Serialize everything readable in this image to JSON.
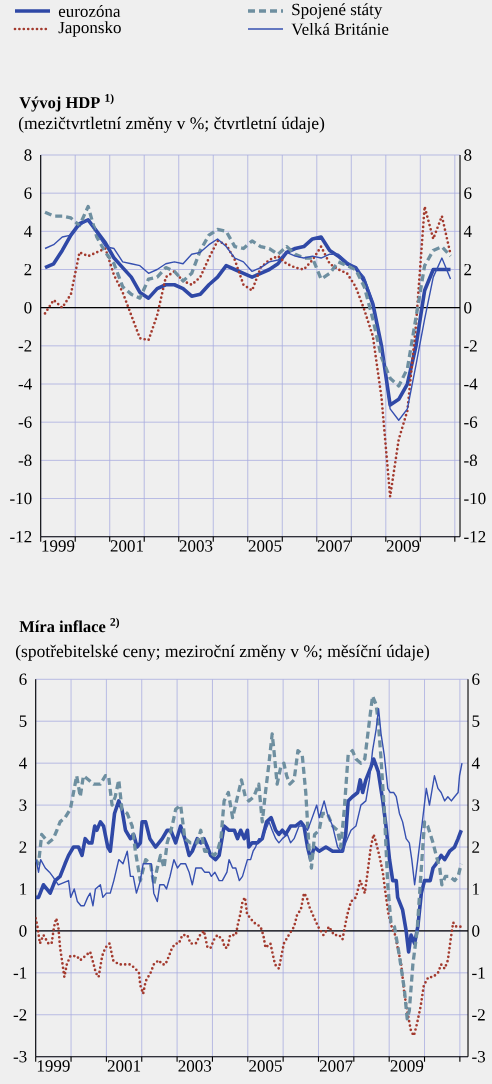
{
  "chart_data": [
    {
      "type": "line",
      "title": "Vývoj HDP $^{1)}$",
      "subtitle": "(mezičtvrtletní změny v %; čtvrtletní údaje)",
      "legend": "top",
      "grid": true,
      "xlim": [
        1999,
        2011.15
      ],
      "ylim": [
        -12,
        8
      ],
      "y2lim": [
        -12,
        8
      ],
      "xticks": [
        {
          "value": 1999,
          "label": null
        },
        {
          "value": 2000,
          "label": null
        },
        {
          "value": 2001,
          "label": null
        },
        {
          "value": 2002,
          "label": null
        },
        {
          "value": 2003,
          "label": null
        },
        {
          "value": 2004,
          "label": null
        },
        {
          "value": 2005,
          "label": null
        },
        {
          "value": 2006,
          "label": null
        },
        {
          "value": 2007,
          "label": null
        },
        {
          "value": 2008,
          "label": null
        },
        {
          "value": 2009,
          "label": null
        },
        {
          "value": 2010,
          "label": null
        },
        {
          "value": 2011,
          "label": null
        },
        {
          "value": 1999.5,
          "label": "1999"
        },
        {
          "value": 2001.5,
          "label": "2001"
        },
        {
          "value": 2003.5,
          "label": "2003"
        },
        {
          "value": 2005.5,
          "label": "2005"
        },
        {
          "value": 2007.5,
          "label": "2007"
        },
        {
          "value": 2009.5,
          "label": "2009"
        }
      ],
      "yticks": [
        -12,
        -10,
        -8,
        -6,
        -4,
        -2,
        0,
        2,
        4,
        6,
        8
      ],
      "y2ticks": [
        -12,
        -10,
        -8,
        -6,
        -4,
        -2,
        0,
        2,
        4,
        6,
        8
      ],
      "ref_lines": [
        {
          "axis": "y",
          "value": 0,
          "color": "#000000"
        }
      ],
      "x": [
        1999.125,
        1999.375,
        1999.625,
        1999.875,
        2000.125,
        2000.375,
        2000.625,
        2000.875,
        2001.125,
        2001.375,
        2001.625,
        2001.875,
        2002.125,
        2002.375,
        2002.625,
        2002.875,
        2003.125,
        2003.375,
        2003.625,
        2003.875,
        2004.125,
        2004.375,
        2004.625,
        2004.875,
        2005.125,
        2005.375,
        2005.625,
        2005.875,
        2006.125,
        2006.375,
        2006.625,
        2006.875,
        2007.125,
        2007.375,
        2007.625,
        2007.875,
        2008.125,
        2008.375,
        2008.625,
        2008.875,
        2009.125,
        2009.375,
        2009.625,
        2009.875,
        2010.125,
        2010.375,
        2010.625,
        2010.875
      ],
      "series": [
        {
          "name": "eurozóna",
          "color": "#2f48a6",
          "line_style": "solid",
          "values": [
            2.1,
            2.3,
            3.0,
            3.8,
            4.4,
            4.6,
            4.0,
            3.4,
            2.6,
            2.1,
            1.6,
            0.8,
            0.5,
            1.0,
            1.2,
            1.2,
            1.0,
            0.6,
            0.7,
            1.2,
            1.6,
            2.2,
            2.0,
            1.8,
            1.6,
            1.8,
            2.0,
            2.3,
            2.9,
            3.1,
            3.2,
            3.6,
            3.7,
            3.0,
            2.7,
            2.3,
            2.1,
            1.4,
            0.2,
            -2.0,
            -5.1,
            -4.8,
            -4.0,
            -2.0,
            0.9,
            2.0,
            2.0,
            2.0
          ]
        },
        {
          "name": "Japonsko",
          "color": "#a33a2e",
          "line_style": "dotted",
          "values": [
            -0.3,
            0.4,
            0.0,
            0.7,
            2.9,
            2.7,
            2.9,
            3.1,
            1.7,
            0.8,
            -0.4,
            -1.6,
            -1.7,
            -0.4,
            1.6,
            1.9,
            1.4,
            1.2,
            1.6,
            2.6,
            3.5,
            3.3,
            2.5,
            1.2,
            0.9,
            2.1,
            2.5,
            2.7,
            2.3,
            2.1,
            2.0,
            2.5,
            3.2,
            2.3,
            2.0,
            1.8,
            1.1,
            -0.1,
            -1.5,
            -4.7,
            -9.9,
            -6.9,
            -5.4,
            -0.9,
            5.3,
            3.6,
            4.8,
            2.8
          ]
        },
        {
          "name": "Spojené státy",
          "color": "#6e8fa0",
          "line_style": "dashed",
          "values": [
            5.0,
            4.8,
            4.8,
            4.7,
            4.3,
            5.3,
            3.7,
            2.9,
            2.3,
            1.1,
            0.7,
            0.5,
            1.5,
            1.6,
            2.1,
            1.9,
            1.4,
            1.8,
            3.0,
            3.8,
            4.1,
            4.0,
            3.2,
            3.1,
            3.5,
            3.2,
            3.1,
            2.8,
            3.2,
            2.8,
            2.6,
            2.6,
            1.5,
            1.8,
            2.4,
            2.2,
            2.0,
            1.1,
            -0.6,
            -2.6,
            -3.7,
            -4.1,
            -3.2,
            -0.5,
            2.2,
            3.0,
            3.2,
            2.7
          ]
        },
        {
          "name": "Velká Británie",
          "color": "#3650b0",
          "line_style": "solid",
          "values": [
            3.1,
            3.3,
            3.7,
            3.8,
            4.3,
            4.6,
            3.9,
            3.2,
            3.1,
            2.4,
            2.3,
            2.2,
            1.8,
            2.0,
            2.3,
            2.4,
            2.3,
            2.8,
            2.9,
            3.3,
            3.6,
            3.2,
            2.6,
            2.4,
            1.9,
            2.1,
            2.4,
            2.5,
            2.9,
            2.7,
            2.6,
            2.7,
            2.6,
            2.8,
            2.8,
            2.4,
            2.1,
            1.6,
            0.3,
            -2.0,
            -5.3,
            -5.9,
            -5.3,
            -3.0,
            -0.6,
            1.6,
            2.6,
            1.5
          ]
        }
      ]
    },
    {
      "type": "line",
      "title": "Míra inflace $^{2)}$",
      "subtitle": "(spotřebitelské ceny; meziroční změny v %; měsíční údaje)",
      "grid": true,
      "xlim": [
        1999,
        2011.23
      ],
      "ylim": [
        -3,
        6
      ],
      "y2lim": [
        -3,
        6
      ],
      "xticks": [
        {
          "value": 1999,
          "label": null
        },
        {
          "value": 2000,
          "label": null
        },
        {
          "value": 2001,
          "label": null
        },
        {
          "value": 2002,
          "label": null
        },
        {
          "value": 2003,
          "label": null
        },
        {
          "value": 2004,
          "label": null
        },
        {
          "value": 2005,
          "label": null
        },
        {
          "value": 2006,
          "label": null
        },
        {
          "value": 2007,
          "label": null
        },
        {
          "value": 2008,
          "label": null
        },
        {
          "value": 2009,
          "label": null
        },
        {
          "value": 2010,
          "label": null
        },
        {
          "value": 2011,
          "label": null
        },
        {
          "value": 1999.5,
          "label": "1999"
        },
        {
          "value": 2001.5,
          "label": "2001"
        },
        {
          "value": 2003.5,
          "label": "2003"
        },
        {
          "value": 2005.5,
          "label": "2005"
        },
        {
          "value": 2007.5,
          "label": "2007"
        },
        {
          "value": 2009.5,
          "label": "2009"
        }
      ],
      "yticks": [
        -3,
        -2,
        -1,
        0,
        1,
        2,
        3,
        4,
        5,
        6
      ],
      "y2ticks": [
        -3,
        -2,
        -1,
        0,
        1,
        2,
        3,
        4,
        5,
        6
      ],
      "ref_lines": [
        {
          "axis": "y",
          "value": 0,
          "color": "#000000"
        }
      ],
      "series": [
        {
          "color": "#2f48a6",
          "line_style": "solid",
          "x": [
            1999.0,
            1999.08,
            1999.22,
            1999.41,
            1999.55,
            1999.69,
            1999.83,
            1999.93,
            2000.07,
            2000.21,
            2000.31,
            2000.4,
            2000.5,
            2000.59,
            2000.67,
            2000.73,
            2000.83,
            2000.92,
            2001.04,
            2001.11,
            2001.23,
            2001.35,
            2001.44,
            2001.54,
            2001.68,
            2001.77,
            2001.87,
            2001.96,
            2002.01,
            2002.11,
            2002.23,
            2002.39,
            2002.58,
            2002.72,
            2002.82,
            2002.96,
            2003.1,
            2003.22,
            2003.34,
            2003.43,
            2003.57,
            2003.67,
            2003.76,
            2003.86,
            2003.95,
            2004.09,
            2004.19,
            2004.33,
            2004.47,
            2004.62,
            2004.71,
            2004.8,
            2004.9,
            2004.99,
            2005.03,
            2005.12,
            2005.27,
            2005.41,
            2005.53,
            2005.66,
            2005.79,
            2005.88,
            2005.98,
            2006.07,
            2006.21,
            2006.35,
            2006.5,
            2006.59,
            2006.69,
            2006.78,
            2006.88,
            2007.02,
            2007.21,
            2007.4,
            2007.54,
            2007.68,
            2007.77,
            2007.84,
            2007.96,
            2008.11,
            2008.18,
            2008.25,
            2008.34,
            2008.48,
            2008.56,
            2008.69,
            2008.82,
            2008.91,
            2009.01,
            2009.1,
            2009.2,
            2009.24,
            2009.38,
            2009.48,
            2009.55,
            2009.62,
            2009.72,
            2009.81,
            2009.91,
            2010.0,
            2010.09,
            2010.16,
            2010.24,
            2010.33,
            2010.47,
            2010.57,
            2010.71,
            2010.85,
            2010.95,
            2011.04
          ],
          "values": [
            0.8,
            0.8,
            1.1,
            0.9,
            1.2,
            1.3,
            1.6,
            1.8,
            2.0,
            2.0,
            1.8,
            2.2,
            2.1,
            2.1,
            2.5,
            2.4,
            2.6,
            2.5,
            2.0,
            1.9,
            2.8,
            3.1,
            2.9,
            2.4,
            2.2,
            2.3,
            2.0,
            2.1,
            2.6,
            2.6,
            2.2,
            2.0,
            2.2,
            2.4,
            2.4,
            2.1,
            2.5,
            2.2,
            1.8,
            1.9,
            2.2,
            2.1,
            2.2,
            2.0,
            1.8,
            1.7,
            1.8,
            2.5,
            2.4,
            2.4,
            2.2,
            2.4,
            2.2,
            2.4,
            2.0,
            2.1,
            2.1,
            2.2,
            2.6,
            2.7,
            2.4,
            2.3,
            2.4,
            2.3,
            2.5,
            2.5,
            2.6,
            2.5,
            2.0,
            1.7,
            2.0,
            1.9,
            2.0,
            1.9,
            1.9,
            1.9,
            2.3,
            3.1,
            3.2,
            3.3,
            3.6,
            3.3,
            3.6,
            3.9,
            4.1,
            3.8,
            3.1,
            2.5,
            1.7,
            1.2,
            1.2,
            0.8,
            0.5,
            0.0,
            -0.5,
            -0.1,
            -0.3,
            0.1,
            0.9,
            1.2,
            1.2,
            1.2,
            1.5,
            1.6,
            1.8,
            1.7,
            1.9,
            2.0,
            2.2,
            2.4
          ]
        },
        {
          "color": "#a33a2e",
          "line_style": "dotted",
          "x": [
            1999.0,
            1999.05,
            1999.12,
            1999.22,
            1999.36,
            1999.45,
            1999.52,
            1999.58,
            1999.64,
            1999.69,
            1999.76,
            1999.81,
            1999.88,
            1999.98,
            2000.07,
            2000.16,
            2000.26,
            2000.4,
            2000.54,
            2000.64,
            2000.7,
            2000.78,
            2000.88,
            2000.97,
            2001.09,
            2001.19,
            2001.35,
            2001.49,
            2001.68,
            2001.82,
            2001.92,
            2001.96,
            2002.04,
            2002.11,
            2002.25,
            2002.34,
            2002.48,
            2002.58,
            2002.67,
            2002.77,
            2002.86,
            2002.96,
            2003.05,
            2003.15,
            2003.29,
            2003.38,
            2003.53,
            2003.65,
            2003.76,
            2003.86,
            2003.95,
            2004.05,
            2004.14,
            2004.28,
            2004.35,
            2004.43,
            2004.5,
            2004.57,
            2004.66,
            2004.73,
            2004.79,
            2004.85,
            2004.92,
            2004.98,
            2005.17,
            2005.36,
            2005.44,
            2005.5,
            2005.64,
            2005.77,
            2005.88,
            2005.95,
            2006.02,
            2006.16,
            2006.31,
            2006.4,
            2006.5,
            2006.59,
            2006.67,
            2006.73,
            2006.83,
            2006.99,
            2007.14,
            2007.3,
            2007.44,
            2007.59,
            2007.68,
            2007.77,
            2007.82,
            2007.92,
            2008.06,
            2008.18,
            2008.31,
            2008.39,
            2008.48,
            2008.56,
            2008.63,
            2008.72,
            2008.82,
            2008.88,
            2008.98,
            2009.07,
            2009.17,
            2009.24,
            2009.34,
            2009.43,
            2009.53,
            2009.62,
            2009.7,
            2009.79,
            2009.89,
            2009.98,
            2010.11,
            2010.24,
            2010.38,
            2010.47,
            2010.57,
            2010.66,
            2010.74,
            2010.81,
            2010.9,
            2011.04
          ],
          "values": [
            0.3,
            0.1,
            -0.3,
            -0.1,
            -0.3,
            -0.3,
            0.1,
            0.3,
            0.1,
            -0.4,
            -0.8,
            -1.1,
            -0.8,
            -0.6,
            -0.6,
            -0.6,
            -0.7,
            -0.6,
            -0.5,
            -0.8,
            -1.0,
            -1.1,
            -0.6,
            -0.4,
            -0.3,
            -0.7,
            -0.8,
            -0.8,
            -0.8,
            -0.9,
            -1.0,
            -1.3,
            -1.5,
            -1.2,
            -1.0,
            -0.8,
            -0.7,
            -0.8,
            -0.8,
            -0.6,
            -0.4,
            -0.3,
            -0.3,
            -0.1,
            -0.1,
            -0.3,
            -0.3,
            -0.1,
            0.0,
            -0.4,
            -0.4,
            -0.2,
            -0.1,
            -0.2,
            -0.4,
            -0.4,
            -0.1,
            -0.1,
            -0.1,
            0.2,
            0.4,
            0.7,
            0.8,
            0.4,
            0.2,
            0.1,
            -0.1,
            -0.4,
            -0.3,
            -0.8,
            -0.9,
            -0.6,
            -0.3,
            -0.1,
            0.1,
            0.4,
            0.5,
            0.9,
            0.8,
            0.6,
            0.4,
            0.1,
            -0.1,
            0.1,
            -0.1,
            -0.1,
            -0.2,
            0.2,
            0.4,
            0.7,
            0.8,
            1.2,
            0.9,
            1.4,
            2.0,
            2.3,
            2.1,
            1.8,
            1.4,
            1.0,
            0.4,
            0.1,
            -0.1,
            -0.4,
            -0.8,
            -1.5,
            -2.0,
            -2.4,
            -2.5,
            -2.2,
            -1.8,
            -1.3,
            -1.1,
            -1.1,
            -1.0,
            -0.8,
            -0.9,
            -0.7,
            -0.2,
            0.2,
            0.1,
            0.1
          ]
        },
        {
          "color": "#6e8fa0",
          "line_style": "dashed",
          "x": [
            1999.0,
            1999.08,
            1999.17,
            1999.27,
            1999.36,
            1999.5,
            1999.6,
            1999.69,
            1999.83,
            1999.98,
            2000.07,
            2000.16,
            2000.26,
            2000.35,
            2000.5,
            2000.64,
            2000.83,
            2000.97,
            2001.06,
            2001.16,
            2001.25,
            2001.35,
            2001.44,
            2001.59,
            2001.73,
            2001.82,
            2001.96,
            2002.11,
            2002.25,
            2002.34,
            2002.44,
            2002.53,
            2002.63,
            2002.72,
            2002.86,
            2002.96,
            2003.1,
            2003.22,
            2003.38,
            2003.57,
            2003.67,
            2003.78,
            2003.91,
            2004.05,
            2004.14,
            2004.24,
            2004.33,
            2004.45,
            2004.57,
            2004.71,
            2004.82,
            2004.93,
            2005.03,
            2005.17,
            2005.31,
            2005.41,
            2005.5,
            2005.6,
            2005.69,
            2005.74,
            2005.83,
            2005.93,
            2006.02,
            2006.1,
            2006.19,
            2006.31,
            2006.42,
            2006.54,
            2006.64,
            2006.73,
            2006.8,
            2006.89,
            2007.02,
            2007.11,
            2007.25,
            2007.4,
            2007.54,
            2007.63,
            2007.73,
            2007.84,
            2007.96,
            2008.06,
            2008.2,
            2008.31,
            2008.44,
            2008.53,
            2008.63,
            2008.69,
            2008.77,
            2008.86,
            2008.96,
            2009.05,
            2009.15,
            2009.29,
            2009.43,
            2009.51,
            2009.57,
            2009.67,
            2009.79,
            2009.91,
            2010.0,
            2010.09,
            2010.24,
            2010.33,
            2010.43,
            2010.49,
            2010.59,
            2010.71,
            2010.85,
            2010.95,
            2011.04
          ],
          "values": [
            1.7,
            1.6,
            2.3,
            2.2,
            2.1,
            2.2,
            2.4,
            2.6,
            2.7,
            2.9,
            3.3,
            3.7,
            3.2,
            3.7,
            3.6,
            3.5,
            3.5,
            3.7,
            3.7,
            3.0,
            3.2,
            3.6,
            2.9,
            2.8,
            2.5,
            1.9,
            1.2,
            1.7,
            1.6,
            1.1,
            1.5,
            1.8,
            1.5,
            2.1,
            2.5,
            2.9,
            3.0,
            2.2,
            2.1,
            2.1,
            2.4,
            1.9,
            1.9,
            1.8,
            1.9,
            2.2,
            3.1,
            3.3,
            2.7,
            3.2,
            3.6,
            3.2,
            3.1,
            3.2,
            3.5,
            2.6,
            3.3,
            4.0,
            4.7,
            4.3,
            3.5,
            3.9,
            4.0,
            3.7,
            3.5,
            3.6,
            4.3,
            4.2,
            3.3,
            2.0,
            1.5,
            2.3,
            2.4,
            2.8,
            2.8,
            2.5,
            2.4,
            2.0,
            2.9,
            4.2,
            4.3,
            4.1,
            4.0,
            4.1,
            5.0,
            5.6,
            5.4,
            5.0,
            4.1,
            2.9,
            1.1,
            0.2,
            0.1,
            -0.6,
            -1.4,
            -2.1,
            -1.9,
            -0.8,
            0.0,
            1.5,
            2.6,
            2.5,
            2.1,
            1.8,
            1.5,
            1.1,
            1.3,
            1.3,
            1.2,
            1.3,
            1.6
          ]
        },
        {
          "color": "#3650b0",
          "line_style": "solid",
          "x": [
            1999.01,
            1999.08,
            1999.14,
            1999.27,
            1999.39,
            1999.48,
            1999.64,
            1999.93,
            1999.99,
            2000.09,
            2000.18,
            2000.28,
            2000.37,
            2000.47,
            2000.54,
            2000.62,
            2000.69,
            2000.83,
            2000.9,
            2001.0,
            2001.11,
            2001.21,
            2001.35,
            2001.47,
            2001.59,
            2001.68,
            2001.76,
            2001.85,
            2001.96,
            2002.04,
            2002.15,
            2002.27,
            2002.34,
            2002.44,
            2002.51,
            2002.63,
            2002.7,
            2002.8,
            2002.91,
            2003.01,
            2003.1,
            2003.24,
            2003.34,
            2003.43,
            2003.53,
            2003.62,
            2003.69,
            2003.78,
            2003.91,
            2003.97,
            2004.07,
            2004.19,
            2004.28,
            2004.41,
            2004.47,
            2004.57,
            2004.66,
            2004.76,
            2004.85,
            2004.99,
            2005.08,
            2005.15,
            2005.22,
            2005.31,
            2005.41,
            2005.5,
            2005.6,
            2005.69,
            2005.79,
            2005.88,
            2005.98,
            2006.12,
            2006.21,
            2006.31,
            2006.45,
            2006.59,
            2006.69,
            2006.78,
            2006.95,
            2007.02,
            2007.16,
            2007.25,
            2007.4,
            2007.54,
            2007.63,
            2007.68,
            2007.77,
            2007.92,
            2008.06,
            2008.2,
            2008.34,
            2008.44,
            2008.53,
            2008.63,
            2008.7,
            2008.77,
            2008.86,
            2008.96,
            2009.03,
            2009.13,
            2009.2,
            2009.29,
            2009.38,
            2009.48,
            2009.57,
            2009.64,
            2009.72,
            2009.81,
            2009.91,
            2010.05,
            2010.14,
            2010.28,
            2010.38,
            2010.47,
            2010.57,
            2010.66,
            2010.76,
            2010.85,
            2010.95,
            2010.99,
            2011.06
          ],
          "values": [
            1.7,
            1.4,
            1.7,
            1.5,
            1.4,
            1.3,
            1.1,
            1.2,
            0.8,
            1.0,
            0.7,
            0.6,
            0.6,
            0.8,
            0.9,
            0.6,
            1.0,
            1.1,
            0.8,
            0.9,
            0.9,
            1.2,
            1.7,
            1.6,
            1.9,
            1.3,
            1.3,
            0.9,
            1.2,
            1.6,
            1.6,
            1.6,
            0.9,
            0.7,
            1.1,
            1.1,
            1.0,
            1.3,
            1.7,
            1.5,
            1.6,
            1.6,
            1.4,
            1.1,
            1.5,
            1.5,
            1.5,
            1.4,
            1.4,
            1.3,
            1.4,
            1.2,
            1.2,
            1.4,
            1.7,
            1.5,
            1.5,
            1.2,
            1.3,
            1.7,
            1.7,
            1.9,
            2.0,
            2.2,
            2.2,
            2.4,
            2.6,
            2.4,
            2.2,
            2.1,
            2.2,
            2.3,
            2.1,
            2.2,
            2.5,
            2.5,
            2.4,
            2.6,
            3.0,
            2.7,
            3.1,
            2.8,
            2.5,
            2.0,
            1.9,
            1.9,
            2.1,
            2.4,
            2.5,
            3.0,
            3.1,
            3.6,
            4.3,
            4.8,
            5.3,
            4.7,
            4.2,
            3.4,
            3.3,
            3.3,
            3.2,
            2.8,
            2.6,
            2.2,
            2.1,
            1.7,
            1.1,
            1.7,
            2.4,
            3.4,
            3.0,
            3.7,
            3.4,
            3.3,
            3.1,
            3.2,
            3.1,
            3.2,
            3.3,
            3.7,
            4.0
          ]
        }
      ]
    }
  ]
}
